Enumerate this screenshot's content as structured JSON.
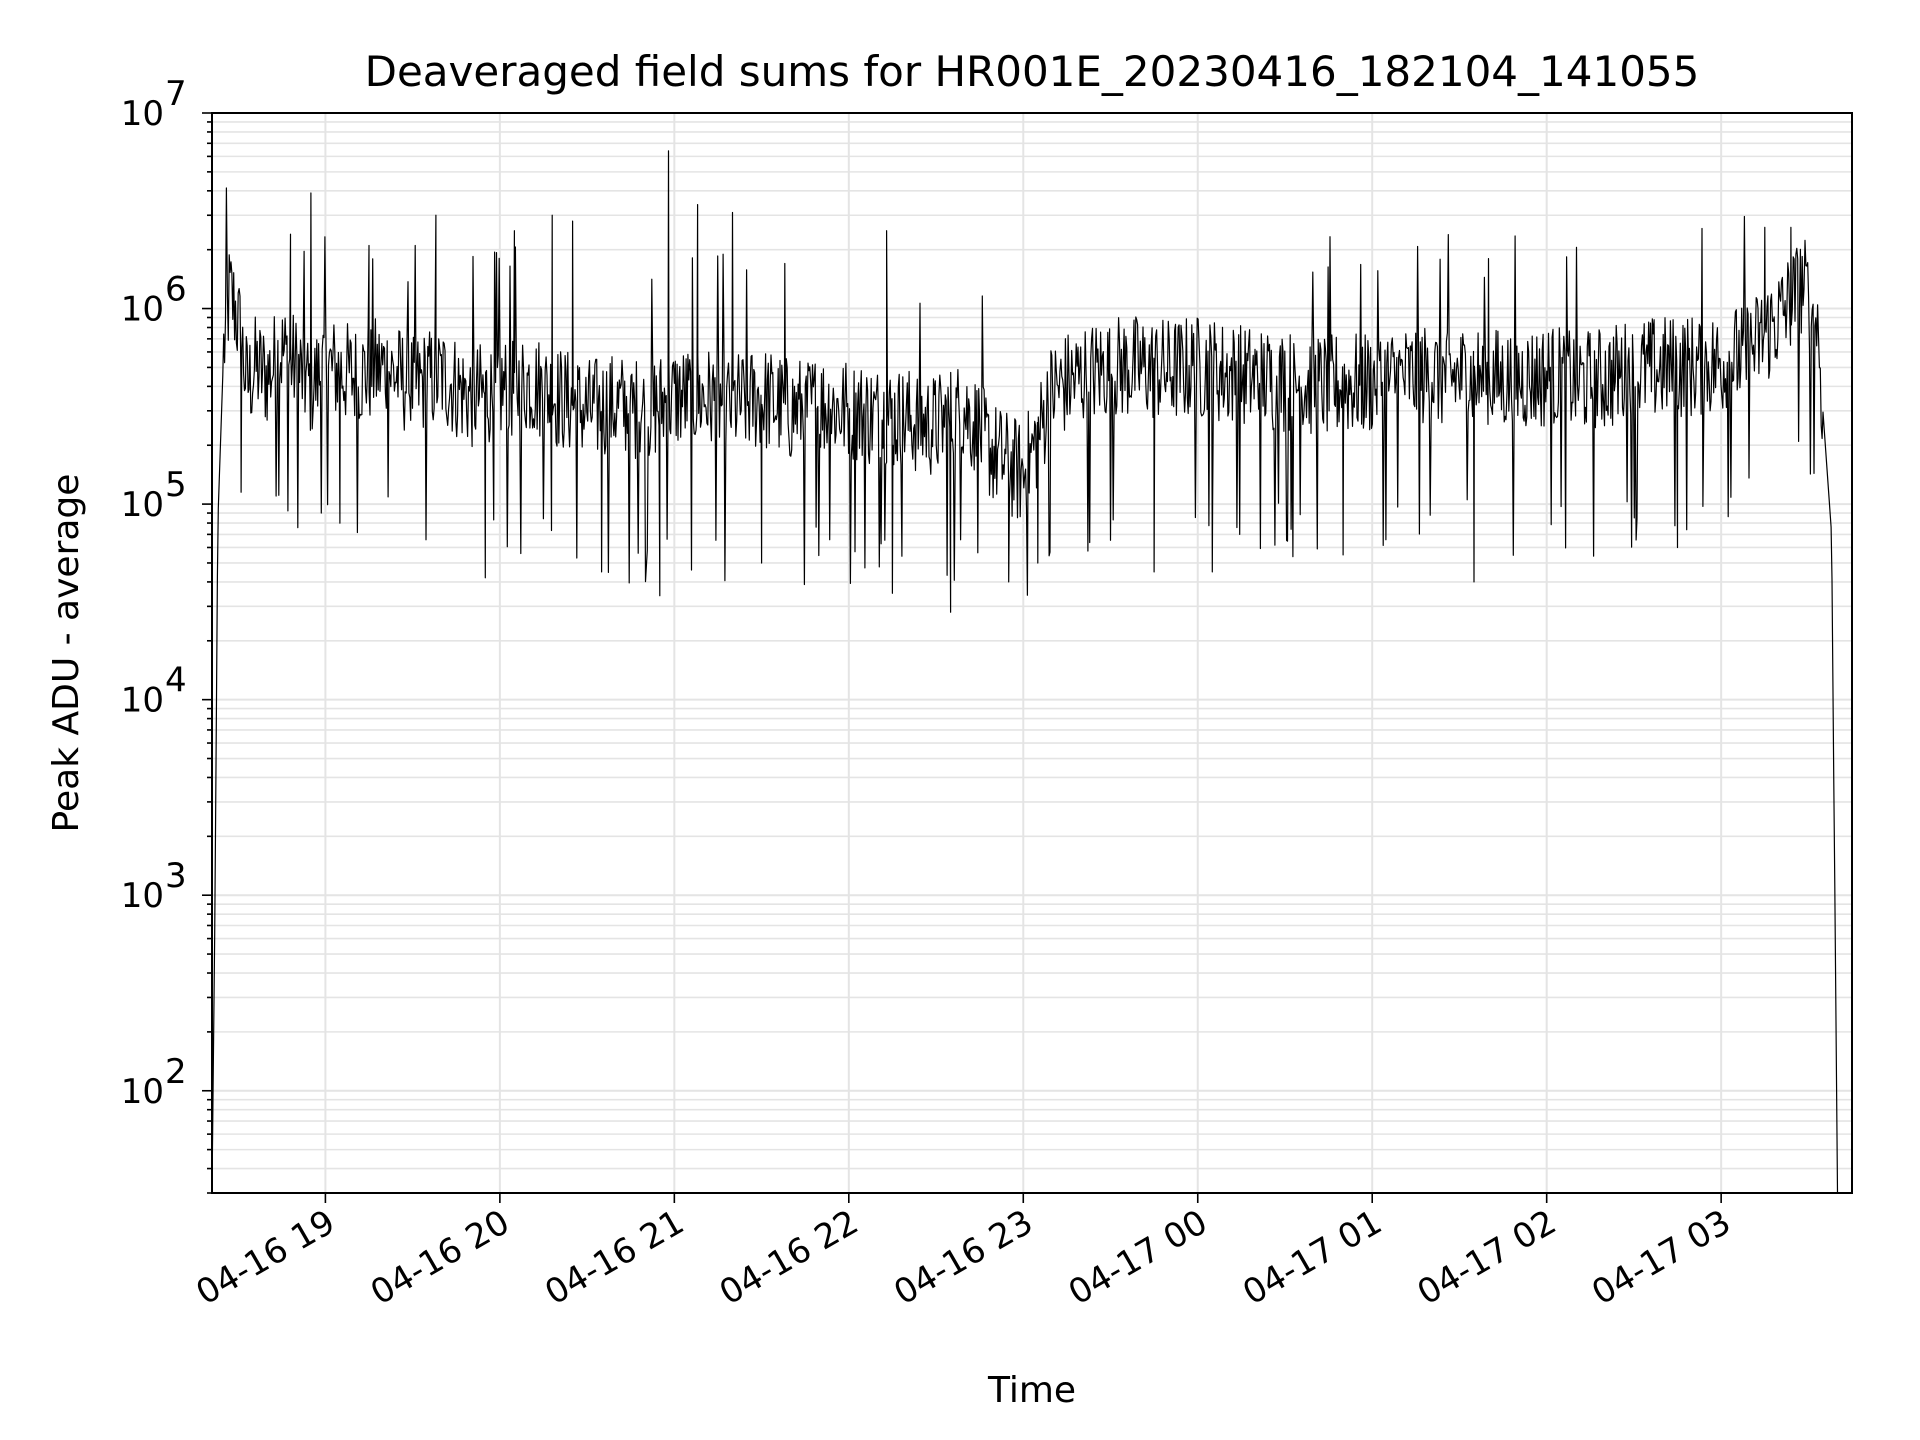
{
  "chart_data": {
    "type": "line",
    "title": "Deaveraged field sums for HR001E_20230416_182104_141055",
    "xlabel": "Time",
    "ylabel": "Peak ADU - average",
    "yscale": "log",
    "ylim": [
      30,
      10000000
    ],
    "xlim": [
      "2023-04-16 18:21",
      "2023-04-17 03:45"
    ],
    "grid": true,
    "colors": {
      "line": "#000000",
      "grid": "#e4e4e4",
      "axes": "#000000"
    },
    "y_ticks": [
      {
        "value": 100,
        "base": "10",
        "exp": "2"
      },
      {
        "value": 1000,
        "base": "10",
        "exp": "3"
      },
      {
        "value": 10000,
        "base": "10",
        "exp": "4"
      },
      {
        "value": 100000,
        "base": "10",
        "exp": "5"
      },
      {
        "value": 1000000,
        "base": "10",
        "exp": "6"
      },
      {
        "value": 10000000,
        "base": "10",
        "exp": "7"
      }
    ],
    "x_ticks": [
      {
        "value": "2023-04-16 19:00",
        "label": "04-16 19"
      },
      {
        "value": "2023-04-16 20:00",
        "label": "04-16 20"
      },
      {
        "value": "2023-04-16 21:00",
        "label": "04-16 21"
      },
      {
        "value": "2023-04-16 22:00",
        "label": "04-16 22"
      },
      {
        "value": "2023-04-16 23:00",
        "label": "04-16 23"
      },
      {
        "value": "2023-04-17 00:00",
        "label": "04-17 00"
      },
      {
        "value": "2023-04-17 01:00",
        "label": "04-17 01"
      },
      {
        "value": "2023-04-17 02:00",
        "label": "04-17 02"
      },
      {
        "value": "2023-04-17 03:00",
        "label": "04-17 03"
      }
    ],
    "series": [
      {
        "values": [
          [
            "2023-04-16 18:21",
            30
          ],
          [
            "2023-04-16 18:22",
            800
          ],
          [
            "2023-04-16 18:23",
            80000
          ],
          [
            "2023-04-16 18:25",
            600000
          ],
          [
            "2023-04-16 18:27",
            1200000
          ],
          [
            "2023-04-16 18:29",
            1000000
          ],
          [
            "2023-04-16 18:31",
            700000
          ],
          [
            "2023-04-16 18:33",
            400000
          ],
          [
            "2023-04-16 18:36",
            500000
          ],
          [
            "2023-04-16 18:40",
            450000
          ],
          [
            "2023-04-16 18:45",
            600000
          ],
          [
            "2023-04-16 18:50",
            500000
          ],
          [
            "2023-04-16 18:55",
            400000
          ],
          [
            "2023-04-16 19:00",
            500000
          ],
          [
            "2023-04-16 19:10",
            450000
          ],
          [
            "2023-04-16 19:20",
            500000
          ],
          [
            "2023-04-16 19:30",
            400000
          ],
          [
            "2023-04-16 19:40",
            450000
          ],
          [
            "2023-04-16 19:50",
            350000
          ],
          [
            "2023-04-16 20:00",
            380000
          ],
          [
            "2023-04-16 20:10",
            420000
          ],
          [
            "2023-04-16 20:20",
            350000
          ],
          [
            "2023-04-16 20:30",
            300000
          ],
          [
            "2023-04-16 20:40",
            320000
          ],
          [
            "2023-04-16 20:50",
            300000
          ],
          [
            "2023-04-16 21:00",
            350000
          ],
          [
            "2023-04-16 21:10",
            350000
          ],
          [
            "2023-04-16 21:20",
            320000
          ],
          [
            "2023-04-16 21:30",
            350000
          ],
          [
            "2023-04-16 21:40",
            300000
          ],
          [
            "2023-04-16 21:50",
            320000
          ],
          [
            "2023-04-16 22:00",
            300000
          ],
          [
            "2023-04-16 22:10",
            280000
          ],
          [
            "2023-04-16 22:20",
            270000
          ],
          [
            "2023-04-16 22:30",
            250000
          ],
          [
            "2023-04-16 22:40",
            300000
          ],
          [
            "2023-04-16 22:50",
            180000
          ],
          [
            "2023-04-16 23:00",
            140000
          ],
          [
            "2023-04-16 23:05",
            220000
          ],
          [
            "2023-04-16 23:10",
            380000
          ],
          [
            "2023-04-16 23:20",
            450000
          ],
          [
            "2023-04-16 23:30",
            500000
          ],
          [
            "2023-04-16 23:40",
            500000
          ],
          [
            "2023-04-16 23:50",
            480000
          ],
          [
            "2023-04-17 00:00",
            500000
          ],
          [
            "2023-04-17 00:15",
            450000
          ],
          [
            "2023-04-17 00:30",
            420000
          ],
          [
            "2023-04-17 00:45",
            400000
          ],
          [
            "2023-04-17 01:00",
            420000
          ],
          [
            "2023-04-17 01:15",
            450000
          ],
          [
            "2023-04-17 01:30",
            450000
          ],
          [
            "2023-04-17 01:45",
            430000
          ],
          [
            "2023-04-17 02:00",
            450000
          ],
          [
            "2023-04-17 02:15",
            420000
          ],
          [
            "2023-04-17 02:30",
            480000
          ],
          [
            "2023-04-17 02:45",
            500000
          ],
          [
            "2023-04-17 03:00",
            520000
          ],
          [
            "2023-04-17 03:10",
            600000
          ],
          [
            "2023-04-17 03:20",
            900000
          ],
          [
            "2023-04-17 03:28",
            1300000
          ],
          [
            "2023-04-17 03:33",
            900000
          ],
          [
            "2023-04-17 03:35",
            300000
          ],
          [
            "2023-04-17 03:38",
            70000
          ],
          [
            "2023-04-17 03:40",
            30
          ]
        ],
        "spikes": [
          [
            "2023-04-16 18:55",
            3900000
          ],
          [
            "2023-04-16 18:48",
            2400000
          ],
          [
            "2023-04-16 19:15",
            2100000
          ],
          [
            "2023-04-16 19:38",
            3000000
          ],
          [
            "2023-04-16 20:05",
            2500000
          ],
          [
            "2023-04-16 20:18",
            3000000
          ],
          [
            "2023-04-16 20:25",
            2800000
          ],
          [
            "2023-04-16 20:58",
            6400000
          ],
          [
            "2023-04-16 21:08",
            3400000
          ],
          [
            "2023-04-16 21:20",
            3100000
          ],
          [
            "2023-04-16 21:38",
            1700000
          ],
          [
            "2023-04-16 22:13",
            2500000
          ],
          [
            "2023-04-17 01:40",
            1800000
          ],
          [
            "2023-04-17 03:15",
            2600000
          ],
          [
            "2023-04-17 03:24",
            2600000
          ]
        ],
        "dips": [
          [
            "2023-04-16 18:31",
            115000
          ],
          [
            "2023-04-16 19:05",
            80000
          ],
          [
            "2023-04-16 19:55",
            42000
          ],
          [
            "2023-04-16 20:35",
            45000
          ],
          [
            "2023-04-16 20:55",
            34000
          ],
          [
            "2023-04-16 21:30",
            50000
          ],
          [
            "2023-04-16 22:15",
            35000
          ],
          [
            "2023-04-16 22:35",
            28000
          ],
          [
            "2023-04-16 22:55",
            40000
          ],
          [
            "2023-04-16 23:05",
            50000
          ],
          [
            "2023-04-16 23:45",
            45000
          ],
          [
            "2023-04-17 00:05",
            45000
          ],
          [
            "2023-04-17 00:50",
            55000
          ],
          [
            "2023-04-17 01:35",
            40000
          ],
          [
            "2023-04-17 02:45",
            60000
          ]
        ]
      }
    ]
  }
}
